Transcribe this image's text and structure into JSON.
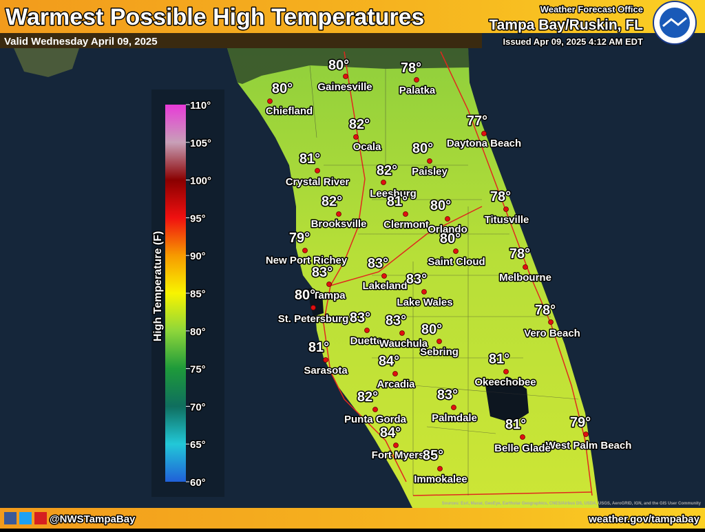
{
  "header": {
    "title": "Warmest Possible High Temperatures",
    "valid": "Valid Wednesday April 09, 2025",
    "office_line1": "Weather Forecast Office",
    "office_line2": "Tampa Bay/Ruskin, FL",
    "issued": "Issued Apr 09, 2025 4:12 AM EDT"
  },
  "legend": {
    "title": "High Temperature (F)",
    "ticks": [
      "110°",
      "105°",
      "100°",
      "95°",
      "90°",
      "85°",
      "80°",
      "75°",
      "70°",
      "65°",
      "60°"
    ]
  },
  "cities": [
    {
      "name": "Gainesville",
      "temp": "80°"
    },
    {
      "name": "Palatka",
      "temp": "78°"
    },
    {
      "name": "Chiefland",
      "temp": "80°"
    },
    {
      "name": "Ocala",
      "temp": "82°"
    },
    {
      "name": "Daytona Beach",
      "temp": "77°"
    },
    {
      "name": "Paisley",
      "temp": "80°"
    },
    {
      "name": "Crystal River",
      "temp": "81°"
    },
    {
      "name": "Leesburg",
      "temp": "82°"
    },
    {
      "name": "Titusville",
      "temp": "78°"
    },
    {
      "name": "Brooksville",
      "temp": "82°"
    },
    {
      "name": "Clermont",
      "temp": "81°"
    },
    {
      "name": "Orlando",
      "temp": "80°"
    },
    {
      "name": "Saint Cloud",
      "temp": "80°"
    },
    {
      "name": "New Port Richey",
      "temp": "79°"
    },
    {
      "name": "Melbourne",
      "temp": "78°"
    },
    {
      "name": "Lakeland",
      "temp": "83°"
    },
    {
      "name": "Tampa",
      "temp": "83°"
    },
    {
      "name": "Lake Wales",
      "temp": "83°"
    },
    {
      "name": "St. Petersburg",
      "temp": "80°"
    },
    {
      "name": "Vero Beach",
      "temp": "78°"
    },
    {
      "name": "Duette",
      "temp": "83°"
    },
    {
      "name": "Wauchula",
      "temp": "83°"
    },
    {
      "name": "Sebring",
      "temp": "80°"
    },
    {
      "name": "Sarasota",
      "temp": "81°"
    },
    {
      "name": "Okeechobee",
      "temp": "81°"
    },
    {
      "name": "Arcadia",
      "temp": "84°"
    },
    {
      "name": "Punta Gorda",
      "temp": "82°"
    },
    {
      "name": "Palmdale",
      "temp": "83°"
    },
    {
      "name": "West Palm Beach",
      "temp": "79°"
    },
    {
      "name": "Belle Glade",
      "temp": "81°"
    },
    {
      "name": "Fort Myers",
      "temp": "84°"
    },
    {
      "name": "Immokalee",
      "temp": "85°"
    }
  ],
  "map_credits": "Sources: Esri, Maxar, GeoEye, Earthstar Geographics, CNES/Airbus DS, USDA, USGS, AeroGRID, IGN, and the GIS User Community",
  "footer": {
    "social": "@NWSTampaBay",
    "website": "weather.gov/tampabay"
  }
}
